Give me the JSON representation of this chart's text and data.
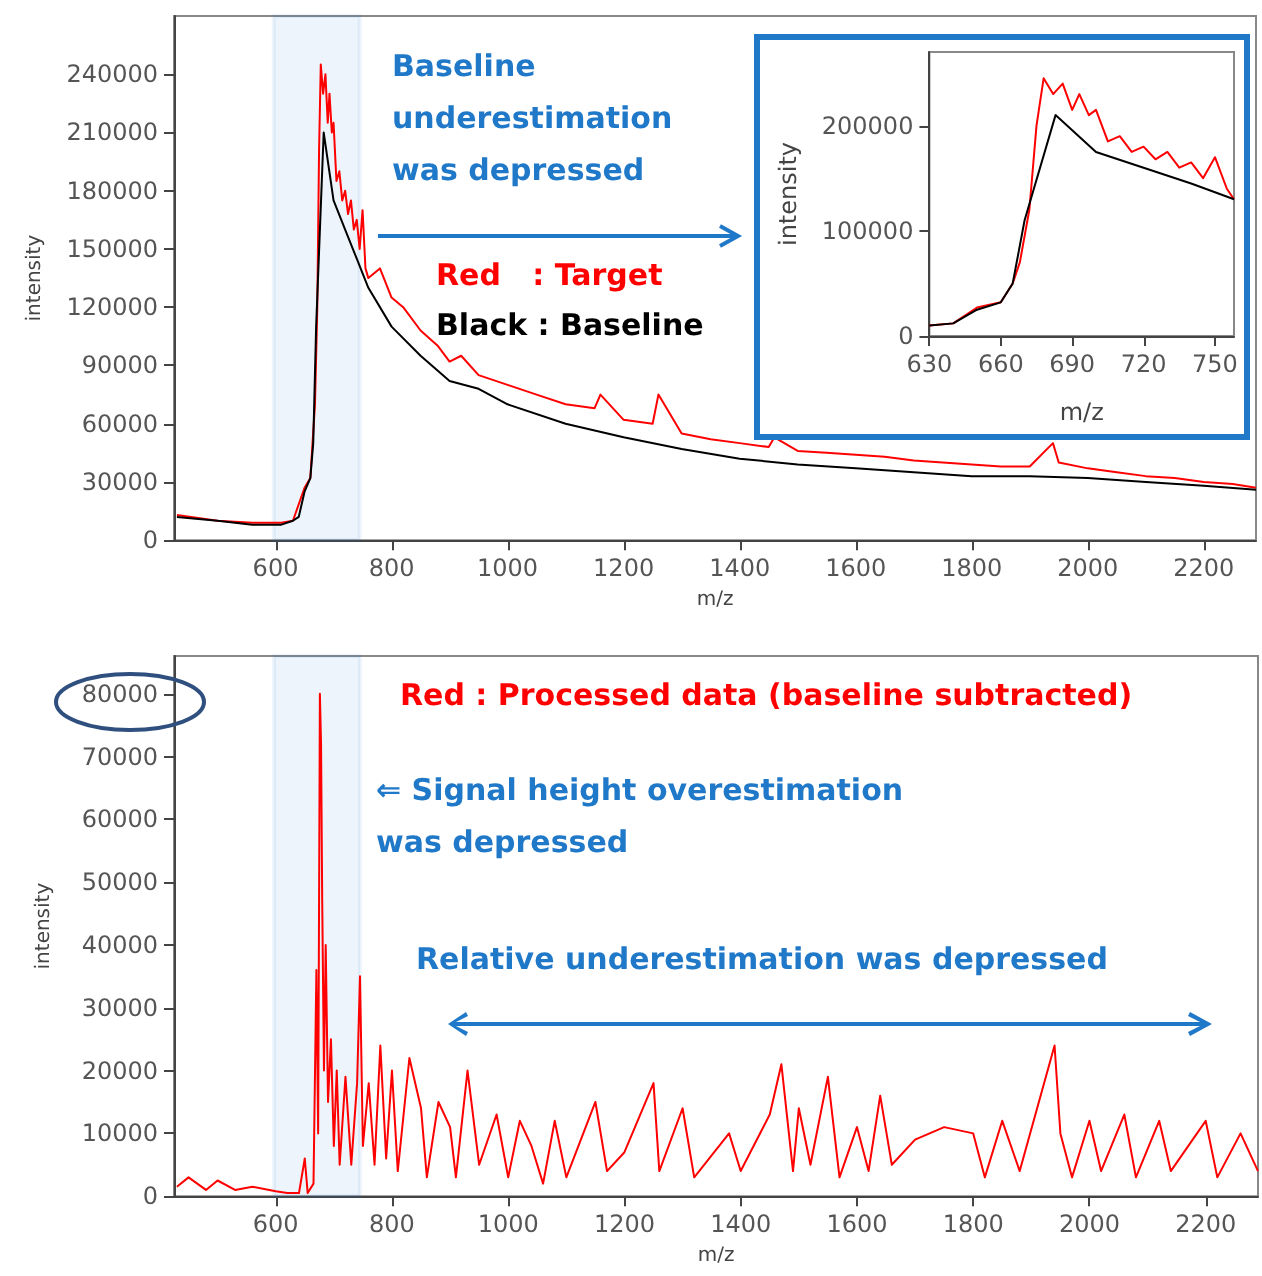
{
  "chart_data": [
    {
      "type": "line",
      "xlabel": "m/z",
      "ylabel": "intensity",
      "xlim": [
        425,
        2290
      ],
      "ylim": [
        0,
        270000
      ],
      "xticks": [
        600,
        800,
        1000,
        1200,
        1400,
        1600,
        1800,
        2000,
        2200
      ],
      "yticks": [
        0,
        30000,
        60000,
        90000,
        120000,
        150000,
        180000,
        210000,
        240000
      ],
      "marker": "none",
      "annotations": [
        "Baseline underestimation was depressed",
        "Red   : Target",
        "Black : Baseline"
      ],
      "bands": [
        {
          "axis": "x",
          "from": 597,
          "to": 745,
          "color": "#1f78c8"
        }
      ],
      "series": [
        {
          "color": "#ff0000",
          "x": [
            430,
            500,
            560,
            610,
            630,
            650,
            660,
            668,
            672,
            675,
            678,
            682,
            686,
            690,
            693,
            697,
            700,
            705,
            710,
            715,
            720,
            725,
            730,
            735,
            740,
            745,
            750,
            755,
            760,
            780,
            800,
            820,
            850,
            880,
            900,
            920,
            950,
            1000,
            1050,
            1100,
            1150,
            1160,
            1200,
            1250,
            1260,
            1300,
            1350,
            1400,
            1450,
            1460,
            1500,
            1550,
            1600,
            1650,
            1700,
            1750,
            1800,
            1850,
            1900,
            1940,
            1950,
            2000,
            2050,
            2100,
            2150,
            2200,
            2250,
            2290
          ],
          "values": [
            13000,
            10000,
            9000,
            9000,
            10000,
            27000,
            32000,
            70000,
            120000,
            200000,
            245000,
            230000,
            240000,
            215000,
            230000,
            210000,
            215000,
            185000,
            190000,
            175000,
            180000,
            168000,
            175000,
            160000,
            165000,
            150000,
            170000,
            140000,
            135000,
            140000,
            125000,
            120000,
            108000,
            100000,
            92000,
            95000,
            85000,
            80000,
            75000,
            70000,
            68000,
            75000,
            62000,
            60000,
            75000,
            55000,
            52000,
            50000,
            48000,
            53000,
            46000,
            45000,
            44000,
            43000,
            41000,
            40000,
            39000,
            38000,
            38000,
            50000,
            40000,
            37000,
            35000,
            33000,
            32000,
            30000,
            29000,
            27000
          ]
        },
        {
          "color": "#000000",
          "x": [
            430,
            500,
            560,
            610,
            630,
            640,
            650,
            660,
            665,
            670,
            683,
            700,
            720,
            740,
            760,
            800,
            850,
            900,
            950,
            1000,
            1100,
            1200,
            1300,
            1400,
            1500,
            1600,
            1700,
            1800,
            1900,
            2000,
            2100,
            2200,
            2290
          ],
          "values": [
            12000,
            10000,
            8000,
            8000,
            10000,
            12000,
            25000,
            32000,
            50000,
            110000,
            210000,
            175000,
            160000,
            145000,
            130000,
            110000,
            95000,
            82000,
            78000,
            70000,
            60000,
            53000,
            47000,
            42000,
            39000,
            37000,
            35000,
            33000,
            33000,
            32000,
            30000,
            28000,
            26000
          ]
        }
      ]
    },
    {
      "type": "line",
      "xlabel": "m/z",
      "ylabel": "intensity",
      "xlim": [
        630,
        758
      ],
      "ylim": [
        0,
        270000
      ],
      "xticks": [
        630,
        660,
        690,
        720,
        750
      ],
      "yticks": [
        0,
        100000,
        200000
      ],
      "marker": "none",
      "series": [
        {
          "color": "#ff0000",
          "x": [
            630,
            640,
            650,
            660,
            665,
            668,
            672,
            675,
            678,
            682,
            686,
            690,
            693,
            697,
            700,
            705,
            710,
            715,
            720,
            725,
            730,
            735,
            740,
            745,
            750,
            755,
            758
          ],
          "values": [
            10000,
            12000,
            27000,
            32000,
            50000,
            70000,
            120000,
            200000,
            245000,
            230000,
            240000,
            215000,
            230000,
            210000,
            215000,
            185000,
            190000,
            175000,
            180000,
            168000,
            175000,
            160000,
            165000,
            150000,
            170000,
            140000,
            130000
          ]
        },
        {
          "color": "#000000",
          "x": [
            630,
            640,
            650,
            660,
            665,
            670,
            683,
            700,
            720,
            740,
            758
          ],
          "values": [
            10000,
            12000,
            25000,
            32000,
            50000,
            110000,
            210000,
            175000,
            160000,
            145000,
            130000
          ]
        }
      ]
    },
    {
      "type": "line",
      "xlabel": "m/z",
      "ylabel": "intensity",
      "xlim": [
        425,
        2290
      ],
      "ylim": [
        0,
        86000
      ],
      "xticks": [
        600,
        800,
        1000,
        1200,
        1400,
        1600,
        1800,
        2000,
        2200
      ],
      "yticks": [
        0,
        10000,
        20000,
        30000,
        40000,
        50000,
        60000,
        70000,
        80000
      ],
      "marker": "none",
      "annotations": [
        "Red : Processed data (baseline subtracted)",
        "⇐ Signal height overestimation was depressed",
        "Relative underestimation was depressed"
      ],
      "bands": [
        {
          "axis": "x",
          "from": 597,
          "to": 745,
          "color": "#1f78c8"
        }
      ],
      "series": [
        {
          "color": "#ff0000",
          "x": [
            430,
            450,
            480,
            500,
            530,
            560,
            600,
            620,
            640,
            650,
            655,
            665,
            670,
            673,
            676,
            678,
            680,
            683,
            686,
            690,
            695,
            700,
            705,
            710,
            720,
            730,
            740,
            745,
            750,
            760,
            770,
            780,
            790,
            800,
            810,
            830,
            850,
            860,
            880,
            900,
            910,
            930,
            950,
            980,
            1000,
            1020,
            1040,
            1060,
            1080,
            1100,
            1150,
            1170,
            1200,
            1250,
            1260,
            1300,
            1320,
            1380,
            1400,
            1450,
            1470,
            1490,
            1500,
            1520,
            1550,
            1570,
            1600,
            1620,
            1640,
            1660,
            1700,
            1750,
            1800,
            1820,
            1850,
            1880,
            1940,
            1950,
            1970,
            2000,
            2020,
            2060,
            2080,
            2120,
            2140,
            2200,
            2220,
            2260,
            2290
          ],
          "values": [
            1500,
            3000,
            1000,
            2500,
            1000,
            1500,
            800,
            500,
            500,
            6000,
            500,
            2000,
            36000,
            10000,
            80000,
            72000,
            47000,
            20000,
            40000,
            15000,
            25000,
            8000,
            20000,
            5000,
            19000,
            5000,
            18000,
            35000,
            8000,
            18000,
            5000,
            24000,
            6000,
            20000,
            4000,
            22000,
            14000,
            3000,
            15000,
            11000,
            3000,
            20000,
            5000,
            13000,
            3000,
            12000,
            8000,
            2000,
            12000,
            3000,
            15000,
            4000,
            7000,
            18000,
            4000,
            14000,
            3000,
            10000,
            4000,
            13000,
            21000,
            4000,
            14000,
            5000,
            19000,
            3000,
            11000,
            4000,
            16000,
            5000,
            9000,
            11000,
            10000,
            3000,
            12000,
            4000,
            24000,
            10000,
            3000,
            12000,
            4000,
            13000,
            3000,
            12000,
            4000,
            12000,
            3000,
            10000,
            4000
          ]
        }
      ]
    }
  ]
}
